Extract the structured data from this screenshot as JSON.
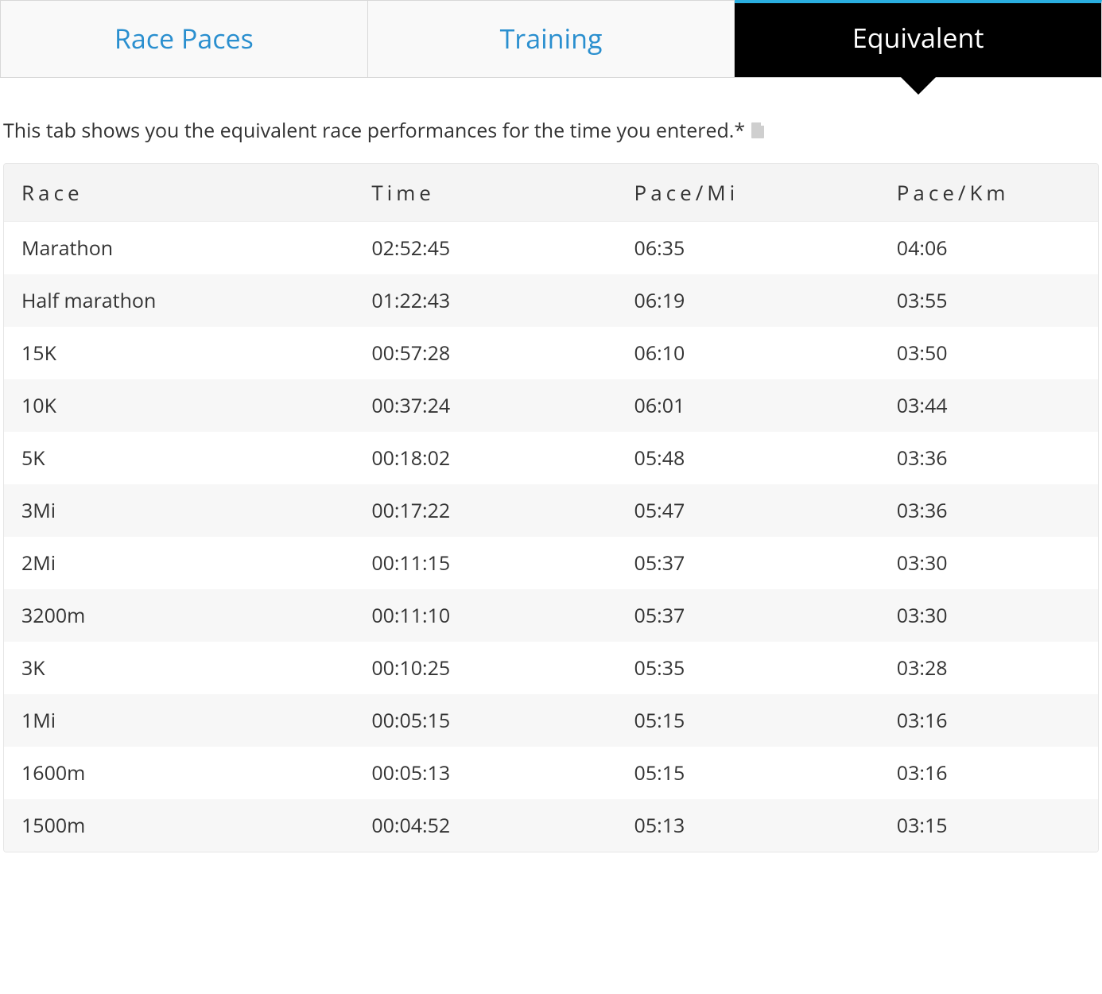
{
  "tabs": {
    "items": [
      {
        "label": "Race Paces",
        "active": false
      },
      {
        "label": "Training",
        "active": false
      },
      {
        "label": "Equivalent",
        "active": true
      }
    ],
    "accent_color": "#2aaee0",
    "inactive_text_color": "#2a8fcf",
    "active_bg": "#000000",
    "active_text": "#ffffff"
  },
  "description": "This tab shows you the equivalent race performances for the time you entered.*",
  "table": {
    "columns": [
      "Race",
      "Time",
      "Pace/Mi",
      "Pace/Km"
    ],
    "rows": [
      {
        "race": "Marathon",
        "time": "02:52:45",
        "paceMi": "06:35",
        "paceKm": "04:06"
      },
      {
        "race": "Half marathon",
        "time": "01:22:43",
        "paceMi": "06:19",
        "paceKm": "03:55"
      },
      {
        "race": "15K",
        "time": "00:57:28",
        "paceMi": "06:10",
        "paceKm": "03:50"
      },
      {
        "race": "10K",
        "time": "00:37:24",
        "paceMi": "06:01",
        "paceKm": "03:44"
      },
      {
        "race": "5K",
        "time": "00:18:02",
        "paceMi": "05:48",
        "paceKm": "03:36"
      },
      {
        "race": "3Mi",
        "time": "00:17:22",
        "paceMi": "05:47",
        "paceKm": "03:36"
      },
      {
        "race": "2Mi",
        "time": "00:11:15",
        "paceMi": "05:37",
        "paceKm": "03:30"
      },
      {
        "race": "3200m",
        "time": "00:11:10",
        "paceMi": "05:37",
        "paceKm": "03:30"
      },
      {
        "race": "3K",
        "time": "00:10:25",
        "paceMi": "05:35",
        "paceKm": "03:28"
      },
      {
        "race": "1Mi",
        "time": "00:05:15",
        "paceMi": "05:15",
        "paceKm": "03:16"
      },
      {
        "race": "1600m",
        "time": "00:05:13",
        "paceMi": "05:15",
        "paceKm": "03:16"
      },
      {
        "race": "1500m",
        "time": "00:04:52",
        "paceMi": "05:13",
        "paceKm": "03:15"
      }
    ],
    "header_bg": "#f4f4f4",
    "row_alt_bg": "#f7f7f7",
    "border_color": "#e6e6e6"
  }
}
